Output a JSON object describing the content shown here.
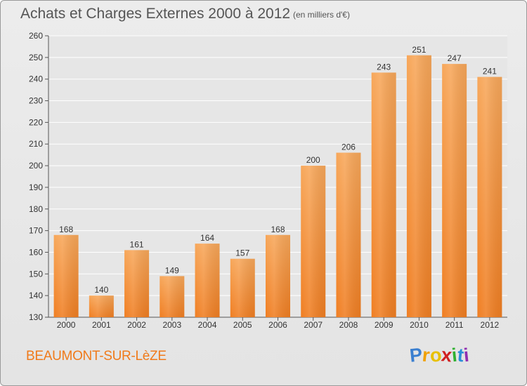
{
  "header": {
    "title": "Achats et Charges Externes 2000 à 2012",
    "subtitle": "(en milliers d'€)"
  },
  "footer": {
    "commune": "BEAUMONT-SUR-LèZE",
    "brand": [
      "P",
      "r",
      "o",
      "x",
      "i",
      "t",
      "i"
    ],
    "brand_colors": [
      "#3a7fd0",
      "#f0a000",
      "#e8c000",
      "#d02020",
      "#30b030",
      "#2a8fd8",
      "#9030b0"
    ]
  },
  "colors": {
    "bar": "#f07e22",
    "bar_light": "#f7a75a",
    "grid": "#ffffff",
    "plot_bg": "#e6e6e6"
  },
  "chart_data": {
    "type": "bar",
    "title": "Achats et Charges Externes 2000 à 2012",
    "subtitle": "(en milliers d'€)",
    "xlabel": "",
    "ylabel": "",
    "categories": [
      "2000",
      "2001",
      "2002",
      "2003",
      "2004",
      "2005",
      "2006",
      "2007",
      "2008",
      "2009",
      "2010",
      "2011",
      "2012"
    ],
    "values": [
      168,
      140,
      161,
      149,
      164,
      157,
      168,
      200,
      206,
      243,
      251,
      247,
      241
    ],
    "ylim": [
      130,
      260
    ],
    "yticks": [
      130,
      140,
      150,
      160,
      170,
      180,
      190,
      200,
      210,
      220,
      230,
      240,
      250,
      260
    ],
    "grid": true,
    "legend": "none"
  }
}
